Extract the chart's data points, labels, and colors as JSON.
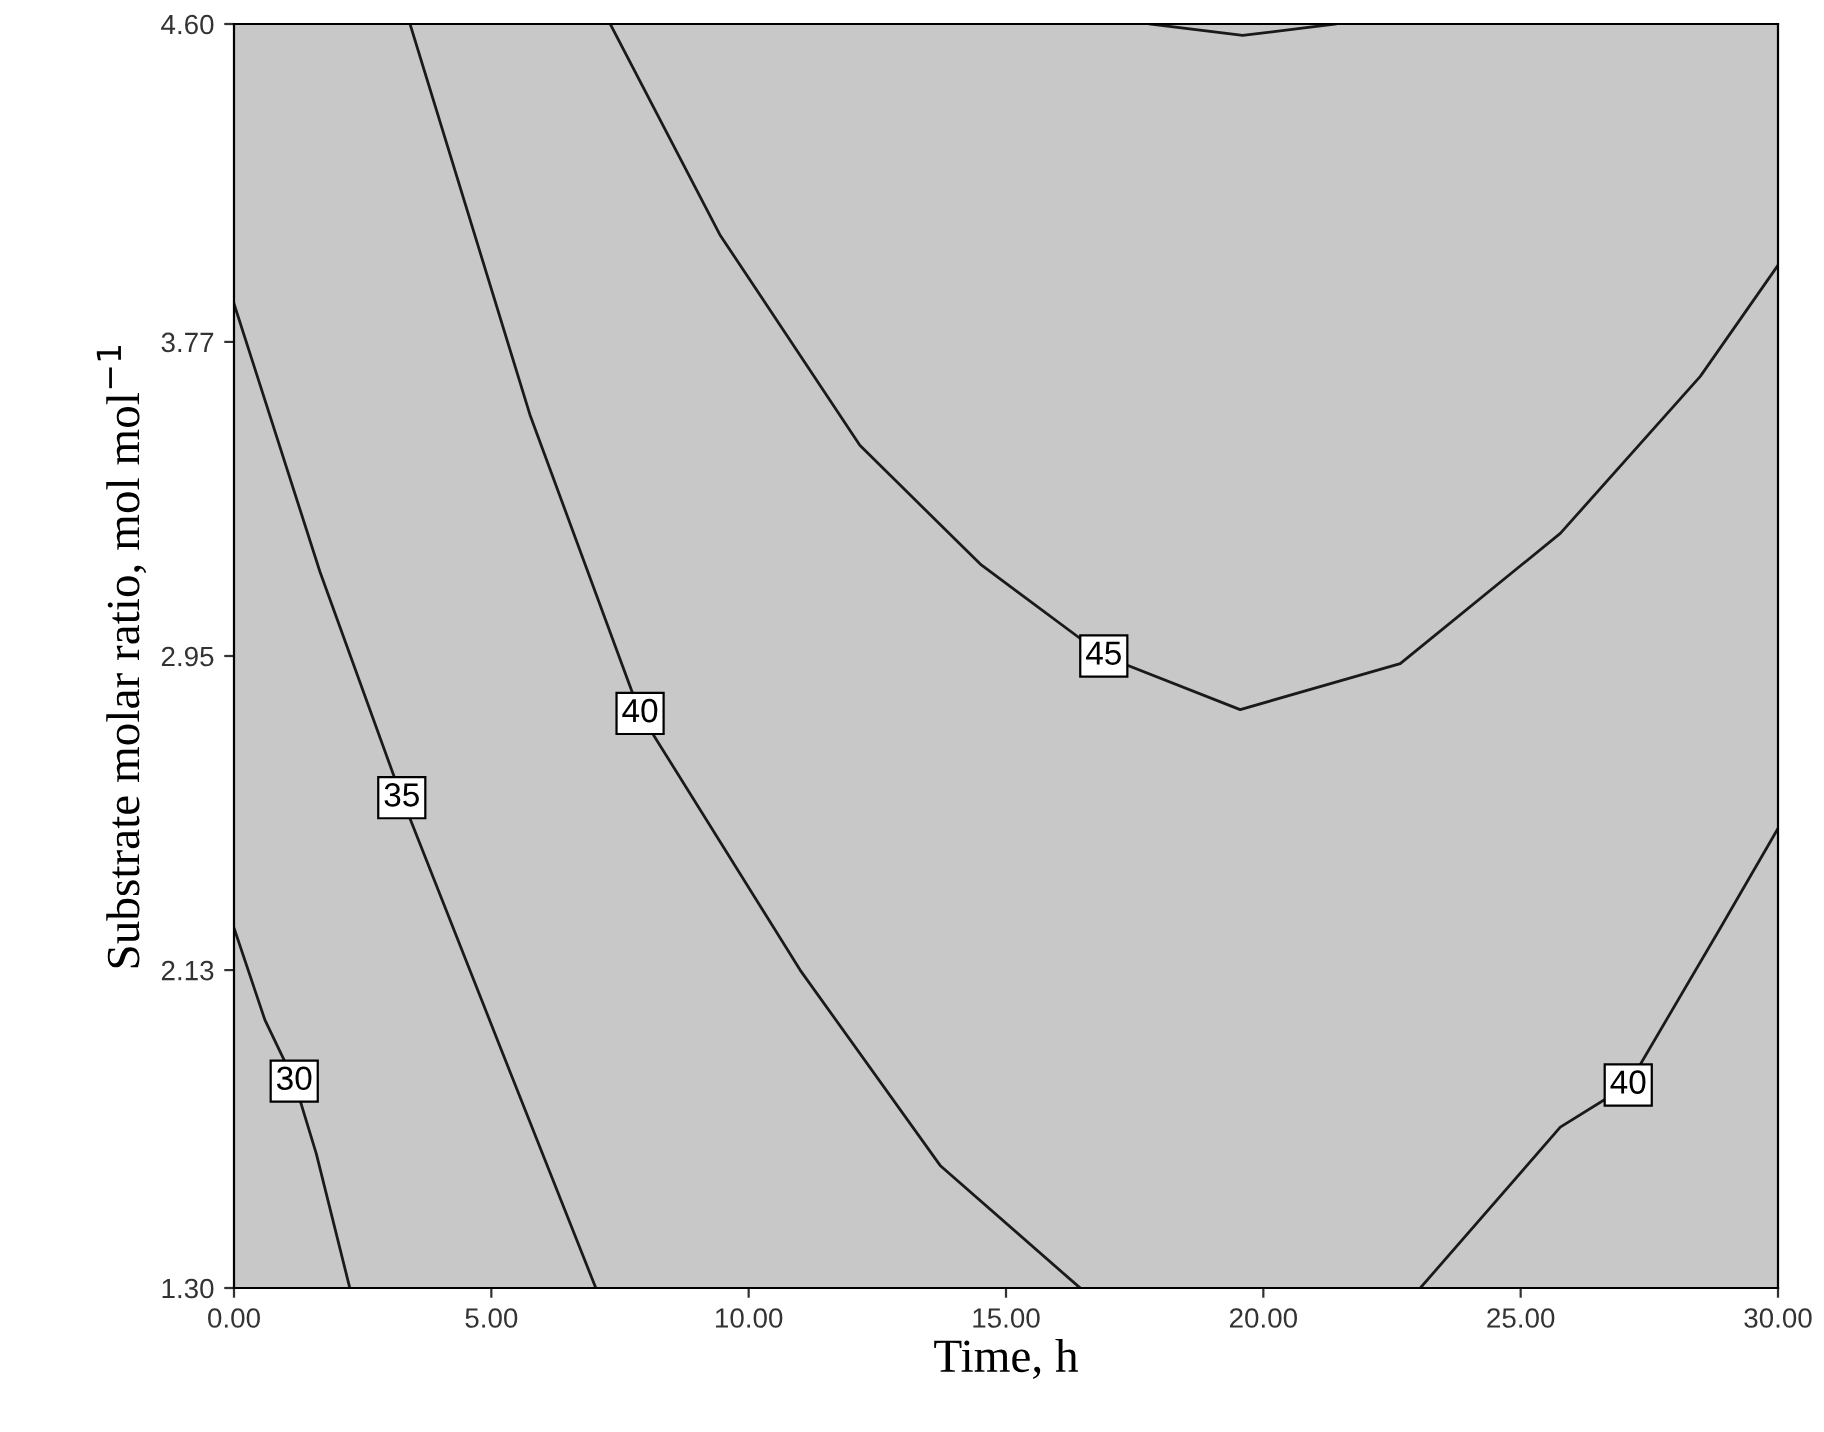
{
  "chart_data": {
    "type": "line",
    "xlabel": "Time, h",
    "ylabel": "Substrate molar ratio, mol mol$^{−1}$",
    "xlim": [
      0,
      30
    ],
    "ylim": [
      1.3,
      4.6
    ],
    "xticks": [
      {
        "value": 0,
        "label": "0.00"
      },
      {
        "value": 5,
        "label": "5.00"
      },
      {
        "value": 10,
        "label": "10.00"
      },
      {
        "value": 15,
        "label": "15.00"
      },
      {
        "value": 20,
        "label": "20.00"
      },
      {
        "value": 25,
        "label": "25.00"
      },
      {
        "value": 30,
        "label": "30.00"
      }
    ],
    "yticks": [
      {
        "value": 1.3,
        "label": "1.30"
      },
      {
        "value": 2.13,
        "label": "2.13"
      },
      {
        "value": 2.95,
        "label": "2.95"
      },
      {
        "value": 3.77,
        "label": "3.77"
      },
      {
        "value": 4.6,
        "label": "4.60"
      }
    ],
    "grid": false,
    "marker": "none",
    "line_style": "solid",
    "series": [
      {
        "color": "#1a1a1a",
        "x": [
          0,
          0.6,
          1.17,
          1.6,
          2.25
        ],
        "values": [
          2.24,
          2.0,
          1.84,
          1.65,
          1.3
        ]
      },
      {
        "color": "#1a1a1a",
        "x": [
          0,
          1.67,
          3.26,
          5.17,
          7.03
        ],
        "values": [
          3.87,
          3.17,
          2.58,
          1.93,
          1.3
        ]
      },
      {
        "color": "#1a1a1a",
        "x": [
          3.42,
          5.75,
          7.89,
          11.0,
          13.72,
          16.44
        ],
        "values": [
          4.6,
          3.58,
          2.8,
          2.13,
          1.62,
          1.3
        ]
      },
      {
        "color": "#1a1a1a",
        "x": [
          23.05,
          25.77,
          27.09,
          28.88,
          30
        ],
        "values": [
          1.3,
          1.72,
          1.83,
          2.24,
          2.5
        ]
      },
      {
        "color": "#1a1a1a",
        "x": [
          7.31,
          9.44,
          12.16,
          14.5,
          16.9,
          19.55,
          22.66,
          25.77,
          28.49,
          30
        ],
        "values": [
          4.6,
          4.05,
          3.5,
          3.19,
          2.95,
          2.81,
          2.93,
          3.27,
          3.68,
          3.97
        ]
      },
      {
        "color": "#1a1a1a",
        "x": [
          17.8,
          19.6,
          21.4
        ],
        "values": [
          4.6,
          4.57,
          4.6
        ]
      }
    ],
    "annotations": [
      {
        "text": "30",
        "x": 1.17,
        "y": 1.84
      },
      {
        "text": "35",
        "x": 3.26,
        "y": 2.58
      },
      {
        "text": "40",
        "x": 7.89,
        "y": 2.8
      },
      {
        "text": "45",
        "x": 16.9,
        "y": 2.95
      },
      {
        "text": "40",
        "x": 27.09,
        "y": 1.83
      }
    ]
  }
}
